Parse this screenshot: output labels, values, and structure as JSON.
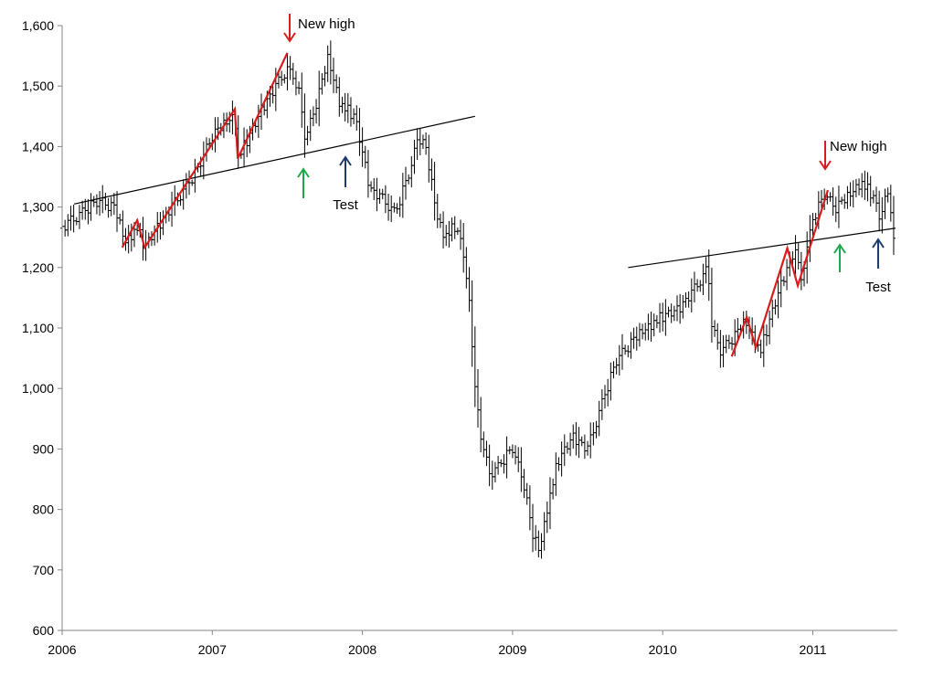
{
  "chart_data": {
    "type": "bar",
    "subtype": "weekly OHLC price bars",
    "title": "",
    "xlabel": "",
    "ylabel": "",
    "xlim": [
      2006.0,
      2011.55
    ],
    "ylim": [
      600,
      1600
    ],
    "x_ticks": [
      2006,
      2007,
      2008,
      2009,
      2010,
      2011
    ],
    "x_tick_labels": [
      "2006",
      "2007",
      "2008",
      "2009",
      "2010",
      "2011"
    ],
    "y_ticks": [
      600,
      700,
      800,
      900,
      1000,
      1100,
      1200,
      1300,
      1400,
      1500,
      1600
    ],
    "y_tick_labels": [
      "600",
      "700",
      "800",
      "900",
      "1,000",
      "1,100",
      "1,200",
      "1,300",
      "1,400",
      "1,500",
      "1,600"
    ],
    "grid": false,
    "legend": "none",
    "colors": {
      "bars": "#000000",
      "trend_line": "#000000",
      "zigzag": "#d81b1b",
      "green_arrow": "#1ea84b",
      "blue_arrow": "#1f3a6b",
      "red_arrow": "#d81b1b"
    },
    "price_path": [
      [
        2006.0,
        1265
      ],
      [
        2006.12,
        1290
      ],
      [
        2006.25,
        1310
      ],
      [
        2006.35,
        1300
      ],
      [
        2006.42,
        1240
      ],
      [
        2006.5,
        1265
      ],
      [
        2006.55,
        1235
      ],
      [
        2006.7,
        1290
      ],
      [
        2006.9,
        1360
      ],
      [
        2007.0,
        1420
      ],
      [
        2007.15,
        1450
      ],
      [
        2007.17,
        1380
      ],
      [
        2007.35,
        1470
      ],
      [
        2007.5,
        1530
      ],
      [
        2007.57,
        1500
      ],
      [
        2007.62,
        1410
      ],
      [
        2007.7,
        1480
      ],
      [
        2007.77,
        1545
      ],
      [
        2007.85,
        1470
      ],
      [
        2007.95,
        1450
      ],
      [
        2008.05,
        1330
      ],
      [
        2008.15,
        1310
      ],
      [
        2008.22,
        1290
      ],
      [
        2008.33,
        1370
      ],
      [
        2008.37,
        1420
      ],
      [
        2008.42,
        1400
      ],
      [
        2008.5,
        1280
      ],
      [
        2008.55,
        1250
      ],
      [
        2008.62,
        1270
      ],
      [
        2008.67,
        1230
      ],
      [
        2008.72,
        1120
      ],
      [
        2008.75,
        1000
      ],
      [
        2008.8,
        900
      ],
      [
        2008.85,
        860
      ],
      [
        2008.9,
        870
      ],
      [
        2009.0,
        900
      ],
      [
        2009.08,
        840
      ],
      [
        2009.13,
        760
      ],
      [
        2009.18,
        730
      ],
      [
        2009.23,
        800
      ],
      [
        2009.3,
        880
      ],
      [
        2009.4,
        920
      ],
      [
        2009.5,
        900
      ],
      [
        2009.6,
        980
      ],
      [
        2009.7,
        1050
      ],
      [
        2009.8,
        1080
      ],
      [
        2009.9,
        1100
      ],
      [
        2010.0,
        1120
      ],
      [
        2010.1,
        1130
      ],
      [
        2010.2,
        1160
      ],
      [
        2010.3,
        1200
      ],
      [
        2010.33,
        1100
      ],
      [
        2010.38,
        1060
      ],
      [
        2010.45,
        1080
      ],
      [
        2010.55,
        1110
      ],
      [
        2010.65,
        1060
      ],
      [
        2010.72,
        1120
      ],
      [
        2010.8,
        1180
      ],
      [
        2010.88,
        1230
      ],
      [
        2010.92,
        1180
      ],
      [
        2011.0,
        1280
      ],
      [
        2011.08,
        1320
      ],
      [
        2011.15,
        1300
      ],
      [
        2011.25,
        1320
      ],
      [
        2011.32,
        1340
      ],
      [
        2011.4,
        1320
      ],
      [
        2011.45,
        1280
      ],
      [
        2011.5,
        1330
      ],
      [
        2011.55,
        1220
      ]
    ],
    "price_noise": [
      3,
      -7,
      5,
      8,
      -4,
      -9,
      2,
      6,
      -1,
      -8,
      9,
      4,
      -6,
      1,
      7,
      -3,
      -10,
      5,
      3,
      -5,
      8,
      -2,
      0,
      6,
      -7,
      4,
      -4,
      9,
      -9,
      2,
      5,
      -6,
      1,
      7,
      -8,
      3
    ],
    "bar_range": [
      10,
      25,
      15,
      35,
      20,
      12,
      30,
      18,
      40,
      22,
      14,
      28,
      16,
      33,
      11
    ],
    "support_line_2007": {
      "from": [
        2006.08,
        1305
      ],
      "to": [
        2008.75,
        1450
      ]
    },
    "support_line_2010": {
      "from": [
        2009.77,
        1200
      ],
      "to": [
        2011.55,
        1265
      ]
    },
    "zigzag_2006": [
      [
        2006.4,
        1233
      ],
      [
        2006.5,
        1278
      ],
      [
        2006.55,
        1233
      ],
      [
        2007.15,
        1462
      ],
      [
        2007.17,
        1380
      ],
      [
        2007.5,
        1555
      ]
    ],
    "zigzag_2010": [
      [
        2010.46,
        1053
      ],
      [
        2010.56,
        1118
      ],
      [
        2010.62,
        1068
      ],
      [
        2010.83,
        1232
      ],
      [
        2010.9,
        1170
      ],
      [
        2011.1,
        1328
      ]
    ],
    "annotations": {
      "new_high_1": "New high",
      "new_high_2": "New high",
      "test_1": "Test",
      "test_2": "Test"
    }
  }
}
